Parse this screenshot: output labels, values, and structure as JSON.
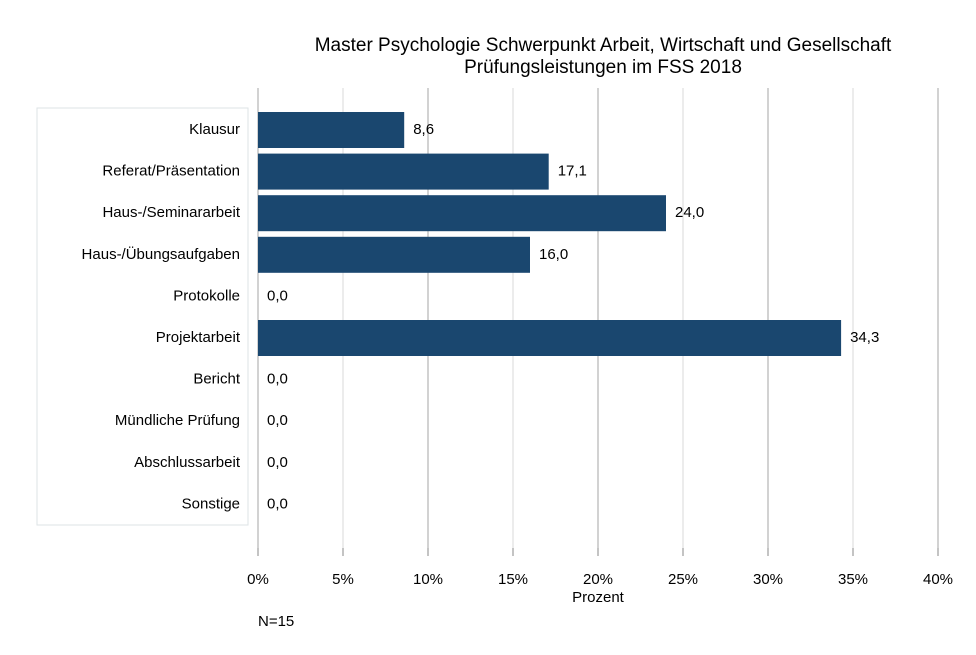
{
  "chart_data": {
    "type": "bar",
    "orientation": "horizontal",
    "title": "Master Psychologie Schwerpunkt Arbeit, Wirtschaft und Gesellschaft",
    "subtitle": "Prüfungsleistungen im FSS 2018",
    "categories": [
      "Klausur",
      "Referat/Präsentation",
      "Haus-/Seminararbeit",
      "Haus-/Übungsaufgaben",
      "Protokolle",
      "Projektarbeit",
      "Bericht",
      "Mündliche Prüfung",
      "Abschlussarbeit",
      "Sonstige"
    ],
    "values": [
      8.6,
      17.1,
      24.0,
      16.0,
      0.0,
      34.3,
      0.0,
      0.0,
      0.0,
      0.0
    ],
    "value_labels": [
      "8,6",
      "17,1",
      "24,0",
      "16,0",
      "0,0",
      "34,3",
      "0,0",
      "0,0",
      "0,0",
      "0,0"
    ],
    "color": "#1a476f",
    "xlim": [
      0,
      40
    ],
    "xticks": [
      {
        "value": 0,
        "label": "0%"
      },
      {
        "value": 5,
        "label": "5%"
      },
      {
        "value": 10,
        "label": "10%"
      },
      {
        "value": 15,
        "label": "15%"
      },
      {
        "value": 20,
        "label": "20%"
      },
      {
        "value": 25,
        "label": "25%"
      },
      {
        "value": 30,
        "label": "30%"
      },
      {
        "value": 35,
        "label": "35%"
      },
      {
        "value": 40,
        "label": "40%"
      }
    ],
    "xlabel": "Prozent",
    "note": "N=15",
    "grid": true
  }
}
